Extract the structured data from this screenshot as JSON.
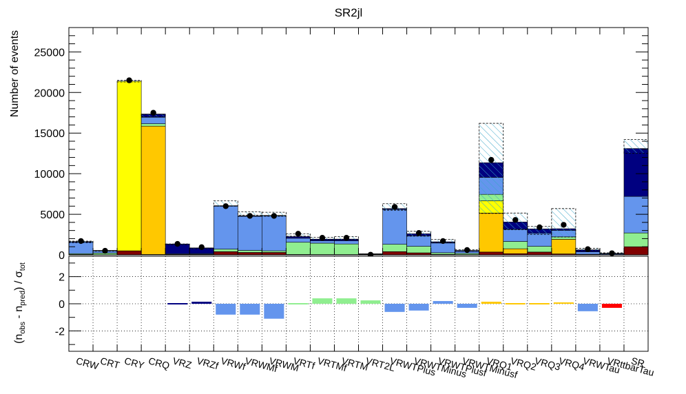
{
  "chart_data": [
    {
      "type": "bar",
      "stacked": true,
      "title": "SR2jl",
      "ylabel": "Number of events",
      "ylim": [
        0,
        28000
      ],
      "yticks": [
        "0",
        "5000",
        "10000",
        "15000",
        "20000",
        "25000"
      ],
      "ytick_values": [
        0,
        5000,
        10000,
        15000,
        20000,
        25000
      ],
      "categories": [
        "CRW",
        "CRT",
        "CRY",
        "CRQ",
        "VRZ",
        "VRZf",
        "VRWf",
        "VRWMf",
        "VRWM",
        "VRTf",
        "VRTMf",
        "VRTM",
        "VRT2L",
        "VRWTPlus",
        "VRWTMinus",
        "VRWTPlusf",
        "VRWTMinusf",
        "VRQ1",
        "VRQ2",
        "VRQ3",
        "VRQ4",
        "VRWTau",
        "VRttbarTau",
        "SR"
      ],
      "series": [
        {
          "color": "#800000",
          "values": [
            50,
            20,
            500,
            50,
            30,
            40,
            400,
            300,
            300,
            50,
            40,
            40,
            20,
            400,
            250,
            60,
            40,
            350,
            150,
            350,
            120,
            30,
            10,
            1000
          ]
        },
        {
          "color": "#ffc800",
          "values": [
            0,
            0,
            0,
            15800,
            0,
            0,
            0,
            0,
            0,
            0,
            0,
            0,
            0,
            0,
            0,
            0,
            0,
            4800,
            600,
            0,
            1800,
            0,
            0,
            0
          ]
        },
        {
          "color": "#ffff00",
          "values": [
            0,
            0,
            20900,
            0,
            0,
            0,
            0,
            0,
            0,
            0,
            0,
            0,
            0,
            0,
            0,
            0,
            0,
            1500,
            0,
            0,
            0,
            0,
            0,
            0
          ]
        },
        {
          "color": "#90ee90",
          "values": [
            100,
            200,
            0,
            300,
            30,
            40,
            300,
            250,
            200,
            1500,
            1400,
            1300,
            40,
            900,
            800,
            200,
            150,
            800,
            900,
            700,
            300,
            50,
            10,
            1700
          ]
        },
        {
          "color": "#6495ed",
          "values": [
            1400,
            300,
            0,
            800,
            80,
            80,
            5300,
            4200,
            4300,
            500,
            300,
            400,
            50,
            4300,
            1300,
            1200,
            250,
            2100,
            1500,
            1600,
            800,
            300,
            80,
            4500
          ]
        },
        {
          "color": "#000080",
          "values": [
            80,
            30,
            0,
            400,
            1200,
            700,
            60,
            60,
            60,
            200,
            200,
            200,
            20,
            100,
            250,
            150,
            100,
            1800,
            900,
            550,
            200,
            250,
            80,
            5900
          ]
        }
      ],
      "uncertainty_band": [
        [
          1700,
          500,
          21500,
          17300,
          1350,
          850,
          6650,
          5300,
          5250,
          2600,
          2150,
          2250,
          100,
          6300,
          2900,
          1900,
          650,
          16200,
          5150,
          3500,
          5700,
          800,
          250,
          14200
        ],
        [
          1500,
          450,
          21300,
          17000,
          1250,
          750,
          6000,
          4900,
          4750,
          2300,
          1900,
          1900,
          60,
          5500,
          2300,
          1500,
          450,
          5100,
          3100,
          2500,
          2200,
          550,
          120,
          12500
        ]
      ],
      "observed": [
        1700,
        500,
        21500,
        17500,
        1350,
        950,
        6000,
        4800,
        4800,
        2600,
        2100,
        2100,
        20,
        5900,
        2700,
        1700,
        600,
        11700,
        4300,
        3400,
        3700,
        700,
        200,
        null
      ],
      "observed_errors": [
        40,
        22,
        150,
        130,
        37,
        31,
        80,
        70,
        70,
        50,
        46,
        46,
        5,
        77,
        52,
        41,
        25,
        110,
        66,
        58,
        61,
        26,
        14,
        null
      ],
      "legend": []
    },
    {
      "type": "bar",
      "ylabel": "(n_obs - n_pred) / σ_tot",
      "ylim": [
        -3.5,
        3.5
      ],
      "yticks": [
        "-2",
        "0",
        "2"
      ],
      "ytick_values": [
        -2,
        0,
        2
      ],
      "categories": [
        "CRW",
        "CRT",
        "CRY",
        "CRQ",
        "VRZ",
        "VRZf",
        "VRWf",
        "VRWMf",
        "VRWM",
        "VRTf",
        "VRTMf",
        "VRTM",
        "VRT2L",
        "VRWTPlus",
        "VRWTMinus",
        "VRWTPlusf",
        "VRWTMinusf",
        "VRQ1",
        "VRQ2",
        "VRQ3",
        "VRQ4",
        "VRWTau",
        "VRttbarTau",
        "SR"
      ],
      "values": [
        0,
        0,
        0,
        0,
        0.05,
        0.15,
        -0.8,
        -0.8,
        -1.1,
        0.05,
        0.4,
        0.4,
        0.25,
        -0.6,
        -0.5,
        0.2,
        -0.3,
        0.15,
        0.05,
        0.05,
        0.1,
        -0.55,
        -0.3,
        0
      ],
      "colors": [
        "#6495ed",
        "#90ee90",
        "#ffff00",
        "#ffc800",
        "#000080",
        "#000080",
        "#6495ed",
        "#6495ed",
        "#6495ed",
        "#90ee90",
        "#90ee90",
        "#90ee90",
        "#90ee90",
        "#6495ed",
        "#6495ed",
        "#6495ed",
        "#6495ed",
        "#ffc800",
        "#ffc800",
        "#ffc800",
        "#ffc800",
        "#6495ed",
        "#ff0000",
        "#6495ed"
      ]
    }
  ]
}
